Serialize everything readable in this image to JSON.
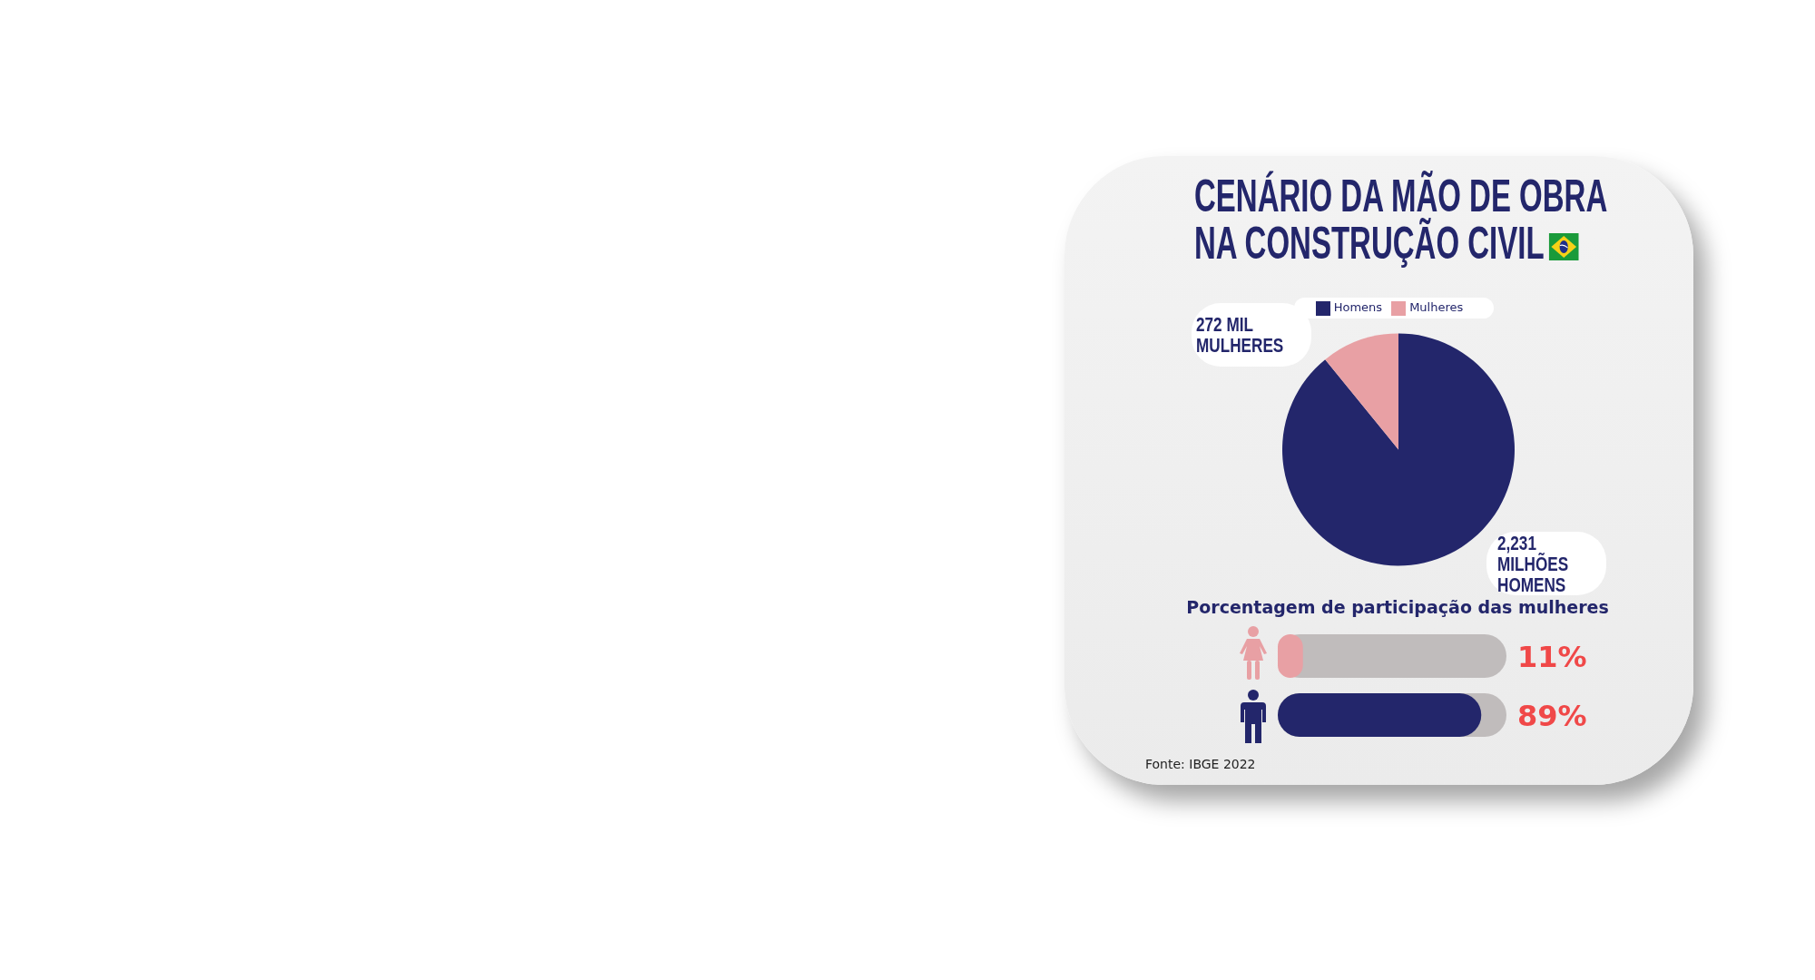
{
  "chart_data": [
    {
      "type": "pie",
      "title": "CENÁRIO DA MÃO DE OBRA NA CONSTRUÇÃO CIVIL",
      "categories": [
        "Homens",
        "Mulheres"
      ],
      "values": [
        2231,
        272
      ],
      "colors": [
        "#23266b",
        "#e8a0a4"
      ],
      "value_labels": [
        "2,231 MILHÕES HOMENS",
        "272 MIL MULHERES"
      ],
      "legend": "top"
    },
    {
      "type": "bar",
      "orientation": "horizontal",
      "title": "Porcentagem de participação das mulheres",
      "categories": [
        null,
        null
      ],
      "values": [
        11,
        89
      ],
      "colors": [
        "#e8a0a4",
        "#23266b"
      ],
      "value_labels": [
        "11%",
        "89%"
      ],
      "xlim": [
        0,
        100
      ],
      "tick_labels": false,
      "annotations": [
        "Fonte: IBGE 2022"
      ]
    }
  ]
}
